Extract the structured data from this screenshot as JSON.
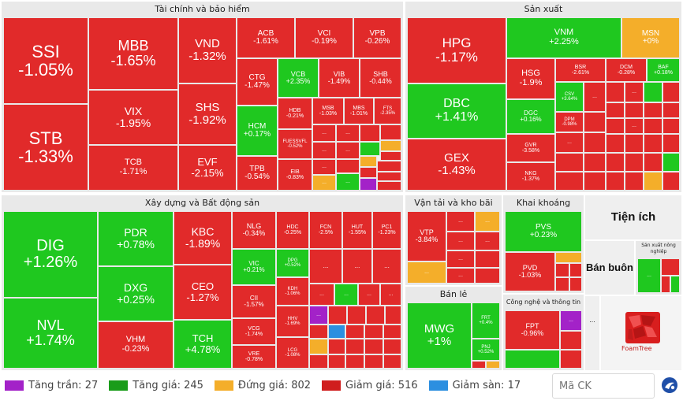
{
  "sectors": {
    "finance": "Tài chính và bảo hiểm",
    "manufacturing": "Sản xuất",
    "construction": "Xây dựng và Bất động sản",
    "transport": "Vận tải và kho bãi",
    "mining": "Khai khoáng",
    "utilities": "Tiện ích",
    "retail": "Bán lẻ",
    "wholesale": "Bán buôn",
    "tech": "Công nghệ và thông tin",
    "agriculture": "Sản xuất nông nghiệp"
  },
  "stocks": {
    "SSI": {
      "ticker": "SSI",
      "change": "-1.05%"
    },
    "STB": {
      "ticker": "STB",
      "change": "-1.33%"
    },
    "MBB": {
      "ticker": "MBB",
      "change": "-1.65%"
    },
    "VIX": {
      "ticker": "VIX",
      "change": "-1.95%"
    },
    "TCB": {
      "ticker": "TCB",
      "change": "-1.71%"
    },
    "VND": {
      "ticker": "VND",
      "change": "-1.32%"
    },
    "SHS": {
      "ticker": "SHS",
      "change": "-1.92%"
    },
    "EVF": {
      "ticker": "EVF",
      "change": "-2.15%"
    },
    "ACB": {
      "ticker": "ACB",
      "change": "-1.61%"
    },
    "VCI": {
      "ticker": "VCI",
      "change": "-0.19%"
    },
    "VPB": {
      "ticker": "VPB",
      "change": "-0.26%"
    },
    "CTG": {
      "ticker": "CTG",
      "change": "-1.47%"
    },
    "VCB": {
      "ticker": "VCB",
      "change": "+2.35%"
    },
    "VIB": {
      "ticker": "VIB",
      "change": "-1.49%"
    },
    "SHB": {
      "ticker": "SHB",
      "change": "-0.44%"
    },
    "HCM": {
      "ticker": "HCM",
      "change": "+0.17%"
    },
    "HDB": {
      "ticker": "HDB",
      "change": "-0.21%"
    },
    "MSB": {
      "ticker": "MSB",
      "change": "-1.03%"
    },
    "MBS": {
      "ticker": "MBS",
      "change": "-1.01%"
    },
    "FTS": {
      "ticker": "FTS",
      "change": "-2.35%"
    },
    "FUESSVFL": {
      "ticker": "FUESSVFL",
      "change": "-0.52%"
    },
    "TPB": {
      "ticker": "TPB",
      "change": "-0.54%"
    },
    "EIB": {
      "ticker": "EIB",
      "change": "-0.83%"
    },
    "HPG": {
      "ticker": "HPG",
      "change": "-1.17%"
    },
    "VNM": {
      "ticker": "VNM",
      "change": "+2.25%"
    },
    "MSN": {
      "ticker": "MSN",
      "change": "+0%"
    },
    "HSG": {
      "ticker": "HSG",
      "change": "-1.9%"
    },
    "BSR": {
      "ticker": "BSR",
      "change": "-2.61%"
    },
    "DCM": {
      "ticker": "DCM",
      "change": "-0.28%"
    },
    "BAF": {
      "ticker": "BAF",
      "change": "+0.18%"
    },
    "DBC": {
      "ticker": "DBC",
      "change": "+1.41%"
    },
    "CSV": {
      "ticker": "CSV",
      "change": "+3.64%"
    },
    "DGC": {
      "ticker": "DGC",
      "change": "+0.16%"
    },
    "DPM": {
      "ticker": "DPM",
      "change": "-0.98%"
    },
    "GVR": {
      "ticker": "GVR",
      "change": "-3.58%"
    },
    "NKG": {
      "ticker": "NKG",
      "change": "-1.37%"
    },
    "GEX": {
      "ticker": "GEX",
      "change": "-1.43%"
    },
    "DIG": {
      "ticker": "DIG",
      "change": "+1.26%"
    },
    "NVL": {
      "ticker": "NVL",
      "change": "+1.74%"
    },
    "PDR": {
      "ticker": "PDR",
      "change": "+0.78%"
    },
    "DXG": {
      "ticker": "DXG",
      "change": "+0.25%"
    },
    "VHM": {
      "ticker": "VHM",
      "change": "-0.23%"
    },
    "KBC": {
      "ticker": "KBC",
      "change": "-1.89%"
    },
    "CEO": {
      "ticker": "CEO",
      "change": "-1.27%"
    },
    "TCH": {
      "ticker": "TCH",
      "change": "+4.78%"
    },
    "NLG": {
      "ticker": "NLG",
      "change": "-0.34%"
    },
    "HDC": {
      "ticker": "HDC",
      "change": "-0.25%"
    },
    "FCN": {
      "ticker": "FCN",
      "change": "-2.5%"
    },
    "HUT": {
      "ticker": "HUT",
      "change": "-1.55%"
    },
    "PC1": {
      "ticker": "PC1",
      "change": "-1.23%"
    },
    "VIC": {
      "ticker": "VIC",
      "change": "+0.21%"
    },
    "DPG": {
      "ticker": "DPG",
      "change": "+0.52%"
    },
    "CII": {
      "ticker": "CII",
      "change": "-1.57%"
    },
    "KDH": {
      "ticker": "KDH",
      "change": "-1.06%"
    },
    "VCG": {
      "ticker": "VCG",
      "change": "-1.74%"
    },
    "HHV": {
      "ticker": "HHV",
      "change": "-1.69%"
    },
    "VRE": {
      "ticker": "VRE",
      "change": "-0.78%"
    },
    "LCG": {
      "ticker": "LCG",
      "change": "-1.08%"
    },
    "VTP": {
      "ticker": "VTP",
      "change": "-3.84%"
    },
    "PVS": {
      "ticker": "PVS",
      "change": "+0.23%"
    },
    "PVD": {
      "ticker": "PVD",
      "change": "-1.03%"
    },
    "MWG": {
      "ticker": "MWG",
      "change": "+1%"
    },
    "FRT": {
      "ticker": "FRT",
      "change": "+0.4%"
    },
    "PNJ": {
      "ticker": "PNJ",
      "change": "+0.52%"
    },
    "FPT": {
      "ticker": "FPT",
      "change": "-0.96%"
    }
  },
  "more": "...",
  "legend": [
    {
      "label": "Tăng trần: 27",
      "color": "#a322c8"
    },
    {
      "label": "Tăng giá: 245",
      "color": "#1a9c1a"
    },
    {
      "label": "Đứng giá: 802",
      "color": "#f4ae2a"
    },
    {
      "label": "Giảm giá: 516",
      "color": "#d01e1e"
    },
    {
      "label": "Giảm sàn: 17",
      "color": "#2c8fe0"
    }
  ],
  "search": {
    "placeholder": "Mã CK"
  },
  "foamtree": {
    "label": "FoamTree"
  }
}
